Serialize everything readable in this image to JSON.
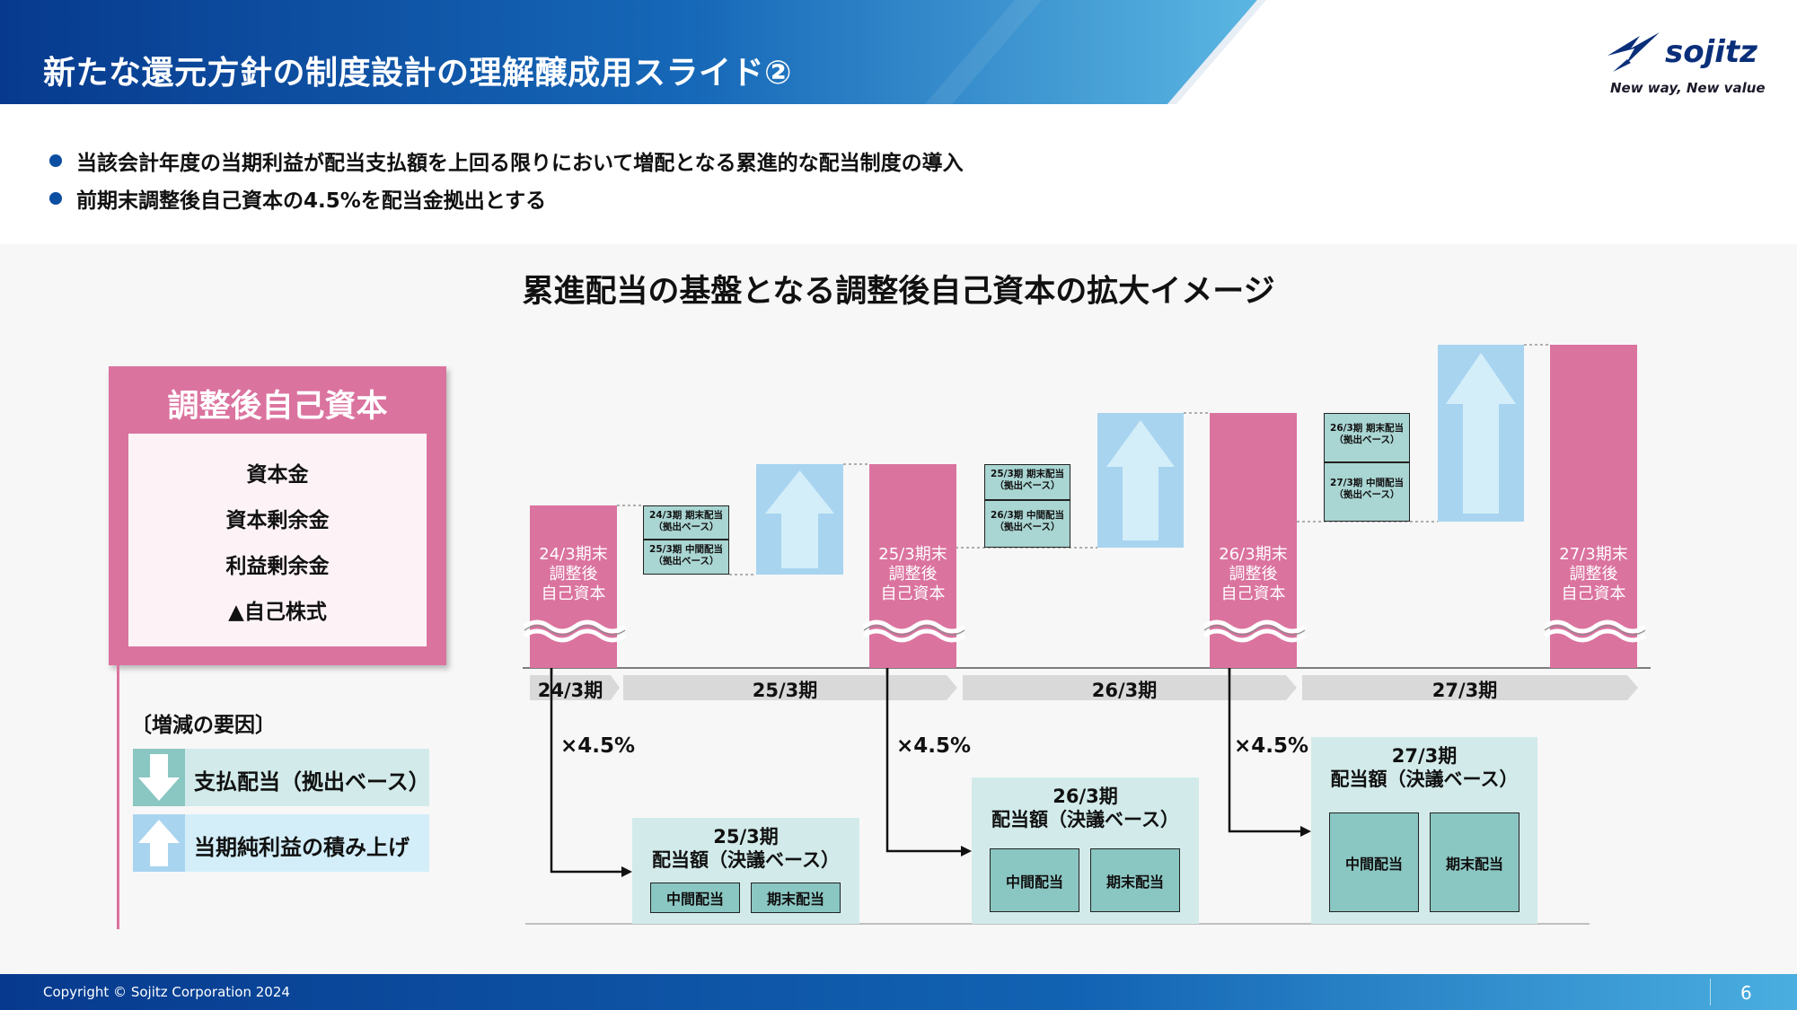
{
  "header": {
    "title": "新たな還元方針の制度設計の理解醸成用スライド②",
    "logo_text": "sojitz",
    "tagline": "New way, New value"
  },
  "bullets": [
    "当該会計年度の当期利益が配当支払額を上回る限りにおいて増配となる累進的な配当制度の導入",
    "前期末調整後自己資本の4.5%を配当金拠出とする"
  ],
  "diagram": {
    "title": "累進配当の基盤となる調整後自己資本の拡大イメージ",
    "capital_box": {
      "title": "調整後自己資本",
      "items": [
        "資本金",
        "資本剰余金",
        "利益剰余金",
        "▲自己株式"
      ]
    },
    "factors": {
      "title": "〔増減の要因〕",
      "items": [
        {
          "label": "支払配当（拠出ベース）",
          "icon": "down-arrow-icon"
        },
        {
          "label": "当期純利益の積み上げ",
          "icon": "up-arrow-icon"
        }
      ]
    },
    "bars": [
      {
        "label": [
          "24/3期末",
          "調整後",
          "自己資本"
        ]
      },
      {
        "label": [
          "25/3期末",
          "調整後",
          "自己資本"
        ]
      },
      {
        "label": [
          "26/3期末",
          "調整後",
          "自己資本"
        ]
      },
      {
        "label": [
          "27/3期末",
          "調整後",
          "自己資本"
        ]
      }
    ],
    "periods": [
      "24/3期",
      "25/3期",
      "26/3期",
      "27/3期"
    ],
    "outflows": [
      {
        "final": [
          "24/3期 期末配当",
          "（拠出ベース）"
        ],
        "interim": [
          "25/3期 中間配当",
          "（拠出ベース）"
        ]
      },
      {
        "final": [
          "25/3期 期末配当",
          "（拠出ベース）"
        ],
        "interim": [
          "26/3期 中間配当",
          "（拠出ベース）"
        ]
      },
      {
        "final": [
          "26/3期 期末配当",
          "（拠出ベース）"
        ],
        "interim": [
          "27/3期 中間配当",
          "（拠出ベース）"
        ]
      }
    ],
    "rate_label": "×4.5%",
    "dividend_boxes": [
      {
        "period": "25/3期",
        "title": "配当額（決議ベース）",
        "interim": "中間配当",
        "final": "期末配当"
      },
      {
        "period": "26/3期",
        "title": "配当額（決議ベース）",
        "interim": "中間配当",
        "final": "期末配当"
      },
      {
        "period": "27/3期",
        "title": "配当額（決議ベース）",
        "interim": "中間配当",
        "final": "期末配当"
      }
    ]
  },
  "footer": {
    "copyright": "Copyright © Sojitz Corporation 2024",
    "page_number": "6"
  },
  "colors": {
    "brand_blue": "#0b3f91",
    "bar_pink": "#db739f",
    "arrow_blue": "#a8d4f0",
    "teal": "#a9d5d2"
  }
}
